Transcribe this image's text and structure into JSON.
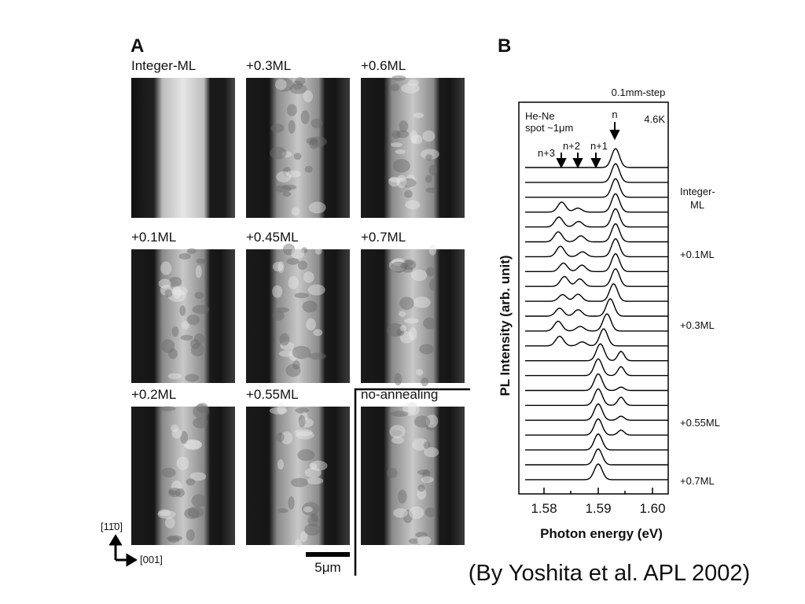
{
  "panel_a": {
    "label": "A",
    "images": [
      {
        "label": "Integer-ML"
      },
      {
        "label": "+0.3ML"
      },
      {
        "label": "+0.6ML"
      },
      {
        "label": "+0.1ML"
      },
      {
        "label": "+0.45ML"
      },
      {
        "label": "+0.7ML"
      },
      {
        "label": "+0.2ML"
      },
      {
        "label": "+0.55ML"
      },
      {
        "label": "no-annealing"
      }
    ],
    "orientation": {
      "vertical": "[11̄0]",
      "horizontal": "[001]"
    },
    "scale_bar": "5μm"
  },
  "panel_b": {
    "label": "B",
    "top_note": "0.1mm-step",
    "laser": "He-Ne",
    "spot": "spot ~1μm",
    "temperature": "4.6K",
    "peak_labels": [
      "n",
      "n+1",
      "n+2",
      "n+3"
    ],
    "side_labels": [
      [
        "Integer-",
        "ML"
      ],
      [
        "+0.1ML"
      ],
      [
        "+0.3ML"
      ],
      [
        "+0.55ML"
      ],
      [
        "+0.7ML"
      ]
    ],
    "x_ticks": [
      "1.58",
      "1.59",
      "1.60"
    ],
    "x_label": "Photon energy (eV)",
    "y_label": "PL Intensity (arb. unit)"
  },
  "caption": "(By Yoshita et al.  APL 2002)"
}
